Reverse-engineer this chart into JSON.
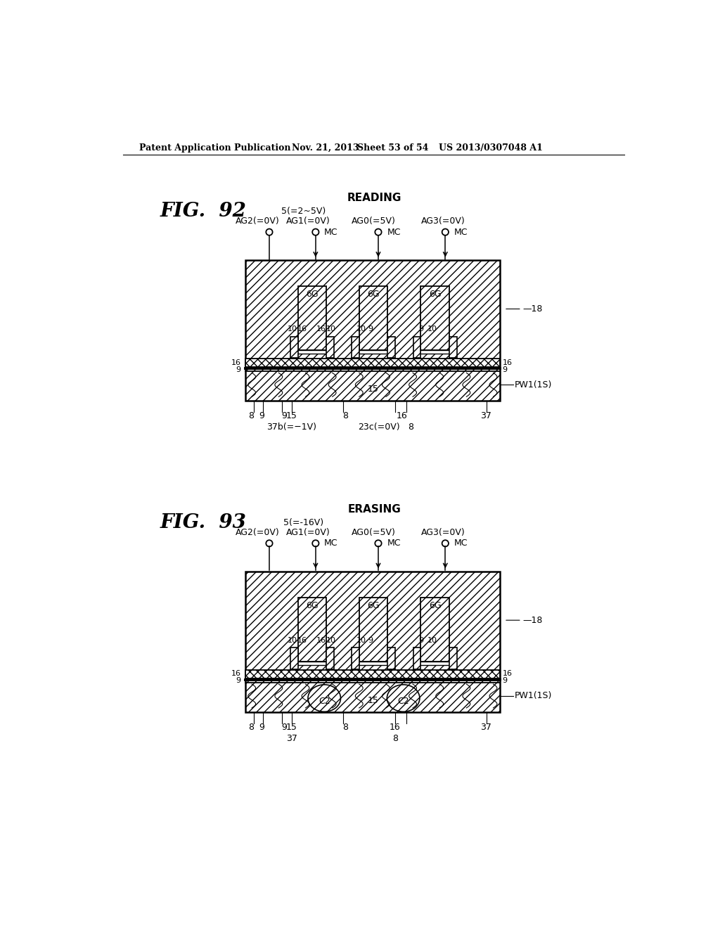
{
  "bg_color": "#ffffff",
  "header_text": "Patent Application Publication",
  "header_date": "Nov. 21, 2013",
  "header_sheet": "Sheet 53 of 54",
  "header_patent": "US 2013/0307048 A1",
  "fig92_label": "FIG.  92",
  "fig93_label": "FIG.  93",
  "reading_label": "READING",
  "erasing_label": "ERASING",
  "fig92_voltage": "5(=2~5V)",
  "fig93_voltage": "5(=-16V)",
  "ag2_label": "AG2(=0V)",
  "ag1_label": "AG1(=0V)",
  "ag0_label": "AG0(=5V)",
  "ag3_label": "AG3(=0V)",
  "mc_label": "MC",
  "fig92_bottom_nums": [
    [
      296,
      "8"
    ],
    [
      315,
      "9"
    ],
    [
      356,
      "9"
    ],
    [
      370,
      "15"
    ],
    [
      468,
      "8"
    ],
    [
      572,
      "16"
    ],
    [
      726,
      "37"
    ]
  ],
  "fig92_bottom_extra": [
    [
      370,
      "37b(=−1V)"
    ],
    [
      530,
      "23c(=0V)"
    ],
    [
      588,
      "8"
    ]
  ],
  "fig93_bottom_nums": [
    [
      296,
      "8"
    ],
    [
      315,
      "9"
    ],
    [
      356,
      "9"
    ],
    [
      370,
      "15"
    ],
    [
      468,
      "8"
    ],
    [
      560,
      "16"
    ],
    [
      726,
      "37"
    ]
  ],
  "fig93_bottom_extra": [
    [
      370,
      "37"
    ],
    [
      560,
      "8"
    ]
  ]
}
